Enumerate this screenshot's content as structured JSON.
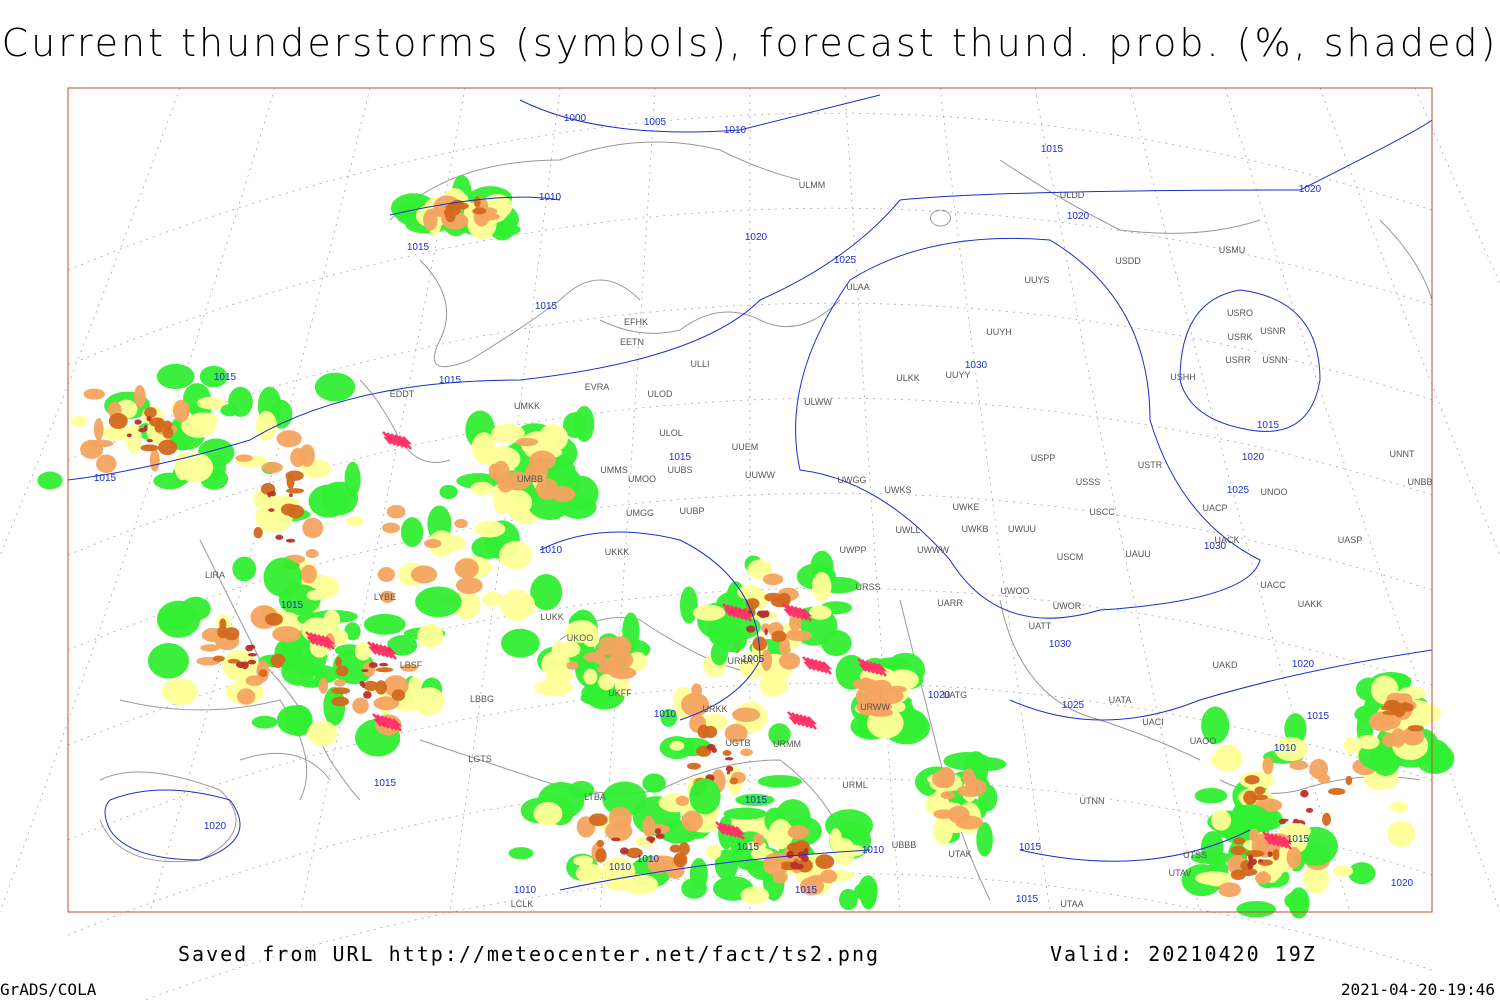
{
  "header": {
    "title": "Current thunderstorms (symbols), forecast thund. prob. (%, shaded)"
  },
  "footer": {
    "saved_from": "Saved from URL http://meteocenter.net/fact/ts2.png",
    "valid": "Valid: 20210420 19Z",
    "software": "GrADS/COLA",
    "timestamp": "2021-04-20-19:46"
  },
  "isobar_labels": [
    "1000",
    "1005",
    "1010",
    "1010",
    "1015",
    "1015",
    "1015",
    "1015",
    "1015",
    "1015",
    "1015",
    "1020",
    "1020",
    "1020",
    "1025",
    "1030",
    "1015",
    "1020",
    "1025",
    "1030",
    "1010",
    "1015",
    "1005",
    "1010",
    "1020",
    "1025",
    "1030",
    "1020",
    "1015",
    "1020",
    "1015",
    "1010",
    "1015",
    "1010",
    "1010",
    "1010",
    "1015",
    "1015",
    "1015",
    "1015",
    "1010",
    "1015",
    "1020"
  ],
  "station_labels": [
    "ULMM",
    "ULDD",
    "USDD",
    "USMU",
    "ULAA",
    "UUYS",
    "USRO",
    "USNR",
    "USRK",
    "USRR",
    "USNN",
    "UUYH",
    "EFHK",
    "EETN",
    "ULLI",
    "EVRA",
    "ULKK",
    "UUYY",
    "USHH",
    "ULOD",
    "EDDT",
    "UMKK",
    "ULWW",
    "ULOL",
    "UUEM",
    "UMMS",
    "USPP",
    "USTR",
    "UNNT",
    "UMOO",
    "UUBS",
    "UUWW",
    "UMBB",
    "UWGG",
    "UWKS",
    "USSS",
    "UNOO",
    "UNBB",
    "UMGG",
    "UUBP",
    "UWKE",
    "UACP",
    "USCC",
    "UWKB",
    "UWUU",
    "UKKK",
    "UWLL",
    "UWWW",
    "UWPP",
    "UACK",
    "UASP",
    "USCM",
    "UAUU",
    "URSS",
    "UACC",
    "UWOO",
    "UARR",
    "UWOR",
    "UAKK",
    "LYBE",
    "LUKK",
    "UATT",
    "UKOO",
    "LBSF",
    "URKA",
    "UAKD",
    "UKFF",
    "UATG",
    "LBBG",
    "UATA",
    "URKK",
    "URWW",
    "UACI",
    "UAOO",
    "UGTB",
    "URMM",
    "LGTS",
    "URML",
    "UTNN",
    "LTBA",
    "UBBB",
    "UTAK",
    "UTSS",
    "UTAV",
    "UTAA",
    "LCLK",
    "LIRA"
  ]
}
